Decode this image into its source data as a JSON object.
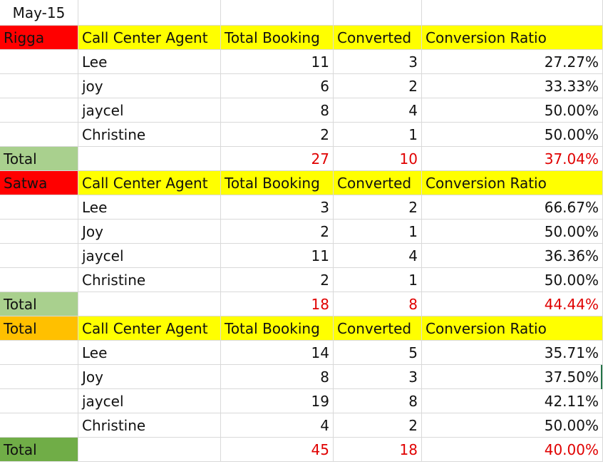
{
  "sheet": {
    "date_label": "May-15",
    "blocks": [
      {
        "location": "Rigga",
        "location_fill": "#ff0000",
        "headers": [
          "Call Center Agent",
          "Total Booking",
          "Converted",
          "Conversion Ratio"
        ],
        "rows": [
          {
            "agent": "Lee",
            "total_booking": "11",
            "converted": "3",
            "ratio": "27.27%"
          },
          {
            "agent": "joy",
            "total_booking": "6",
            "converted": "2",
            "ratio": "33.33%"
          },
          {
            "agent": "jaycel",
            "total_booking": "8",
            "converted": "4",
            "ratio": "50.00%"
          },
          {
            "agent": "Christine",
            "total_booking": "2",
            "converted": "1",
            "ratio": "50.00%"
          }
        ],
        "total": {
          "label": "Total",
          "total_booking": "27",
          "converted": "10",
          "ratio": "37.04%",
          "fill": "#a9d08e"
        }
      },
      {
        "location": "Satwa",
        "location_fill": "#ff0000",
        "headers": [
          "Call Center Agent",
          "Total Booking",
          "Converted",
          "Conversion Ratio"
        ],
        "rows": [
          {
            "agent": "Lee",
            "total_booking": "3",
            "converted": "2",
            "ratio": "66.67%"
          },
          {
            "agent": "Joy",
            "total_booking": "2",
            "converted": "1",
            "ratio": "50.00%"
          },
          {
            "agent": "jaycel",
            "total_booking": "11",
            "converted": "4",
            "ratio": "36.36%"
          },
          {
            "agent": "Christine",
            "total_booking": "2",
            "converted": "1",
            "ratio": "50.00%"
          }
        ],
        "total": {
          "label": "Total",
          "total_booking": "18",
          "converted": "8",
          "ratio": "44.44%",
          "fill": "#a9d08e"
        }
      },
      {
        "location": "Total",
        "location_fill": "#ffc000",
        "headers": [
          "Call Center Agent",
          "Total Booking",
          "Converted",
          "Conversion Ratio"
        ],
        "rows": [
          {
            "agent": "Lee",
            "total_booking": "14",
            "converted": "5",
            "ratio": "35.71%"
          },
          {
            "agent": "Joy",
            "total_booking": "8",
            "converted": "3",
            "ratio": "37.50%"
          },
          {
            "agent": "jaycel",
            "total_booking": "19",
            "converted": "8",
            "ratio": "42.11%"
          },
          {
            "agent": "Christine",
            "total_booking": "4",
            "converted": "2",
            "ratio": "50.00%"
          }
        ],
        "total": {
          "label": "Total",
          "total_booking": "45",
          "converted": "18",
          "ratio": "40.00%",
          "fill": "#70ad47"
        }
      }
    ]
  },
  "colors": {
    "header_fill": "#ffff00",
    "total_value_text": "#e00000",
    "gridline": "#d9d9d9"
  }
}
